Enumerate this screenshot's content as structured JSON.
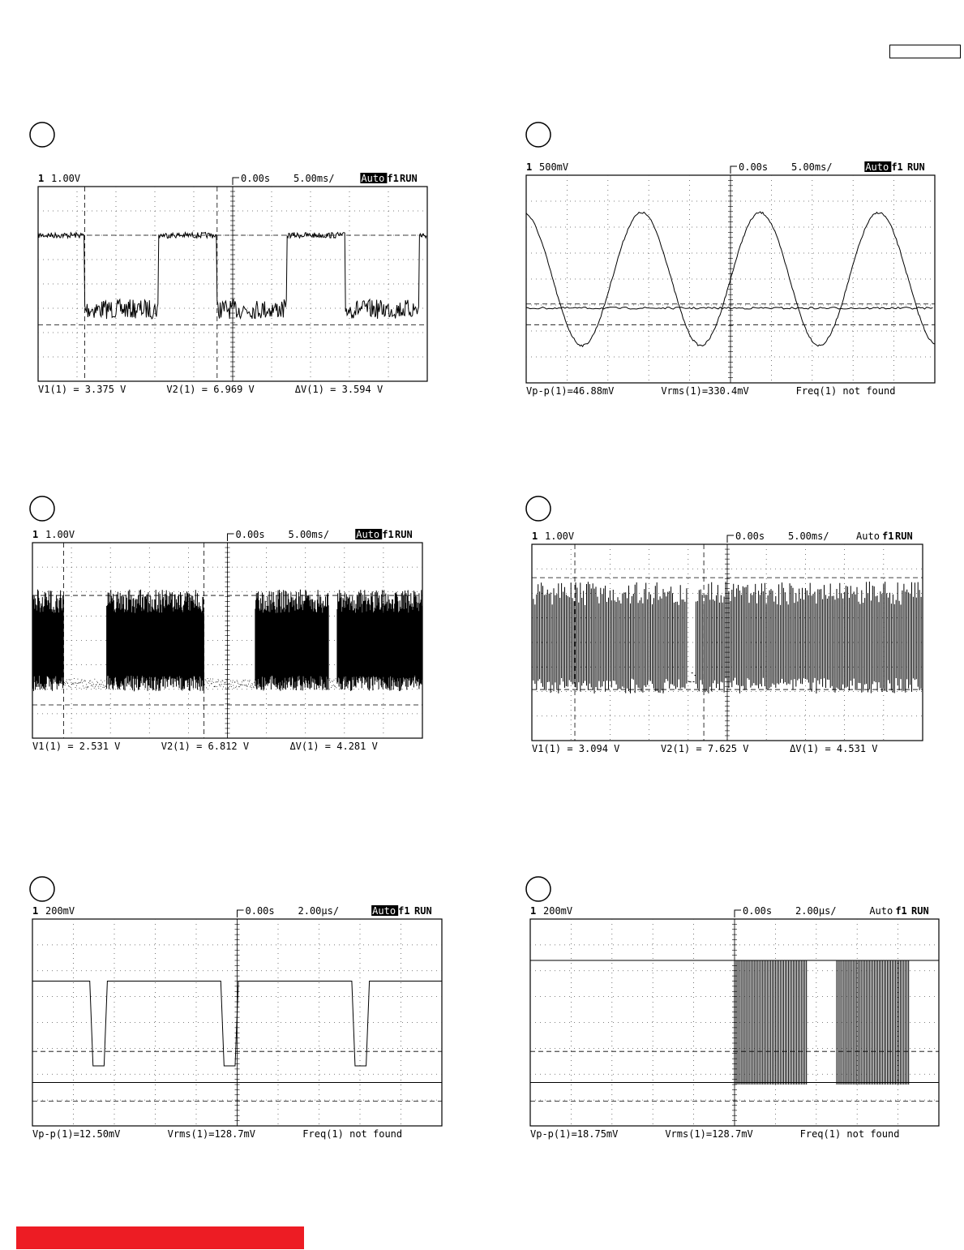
{
  "panels": [
    {
      "channel": "1",
      "scale": "1.00V",
      "delay": "0.00s",
      "timebase": "5.00ms/",
      "mode": "Auto",
      "trigger": "f1",
      "status": "RUN",
      "measurements": [
        "V1(1) = 3.375 V",
        "V2(1) = 6.969 V",
        "ΔV(1) = 3.594 V"
      ]
    },
    {
      "channel": "1",
      "scale": "500mV",
      "delay": "0.00s",
      "timebase": "5.00ms/",
      "mode": "Auto",
      "trigger": "f1",
      "status": "RUN",
      "measurements": [
        "Vp-p(1)=46.88mV",
        "Vrms(1)=330.4mV",
        "Freq(1) not found"
      ]
    },
    {
      "channel": "1",
      "scale": "1.00V",
      "delay": "0.00s",
      "timebase": "5.00ms/",
      "mode": "Auto",
      "trigger": "f1",
      "status": "RUN",
      "measurements": [
        "V1(1) = 2.531 V",
        "V2(1) = 6.812 V",
        "ΔV(1) = 4.281 V"
      ]
    },
    {
      "channel": "1",
      "scale": "1.00V",
      "delay": "0.00s",
      "timebase": "5.00ms/",
      "mode": "Auto",
      "trigger": "f1",
      "status": "RUN",
      "measurements": [
        "V1(1) = 3.094 V",
        "V2(1) = 7.625 V",
        "ΔV(1) = 4.531 V"
      ]
    },
    {
      "channel": "1",
      "scale": "200mV",
      "delay": "0.00s",
      "timebase": "2.00µs/",
      "mode": "Auto",
      "trigger": "f1",
      "status": "RUN",
      "measurements": [
        "Vp-p(1)=12.50mV",
        "Vrms(1)=128.7mV",
        "Freq(1) not found"
      ]
    },
    {
      "channel": "1",
      "scale": "200mV",
      "delay": "0.00s",
      "timebase": "2.00µs/",
      "mode": "Auto",
      "trigger": "f1",
      "status": "RUN",
      "measurements": [
        "Vp-p(1)=18.75mV",
        "Vrms(1)=128.7mV",
        "Freq(1) not found"
      ]
    }
  ]
}
